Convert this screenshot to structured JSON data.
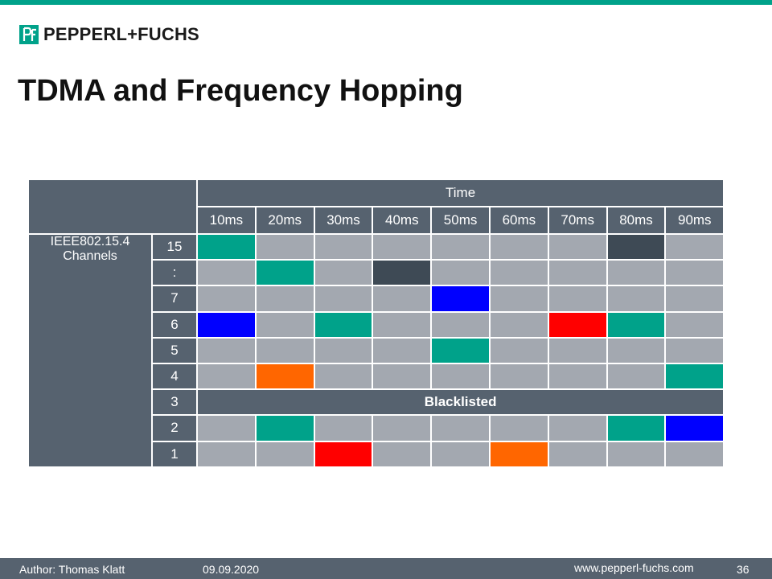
{
  "slide": {
    "brand": "PEPPERL+FUCHS",
    "title": "TDMA and Frequency Hopping"
  },
  "table": {
    "time_header": "Time",
    "channel_label": "IEEE802.15.4 Channels",
    "time_slots": [
      "10ms",
      "20ms",
      "30ms",
      "40ms",
      "50ms",
      "60ms",
      "70ms",
      "80ms",
      "90ms"
    ],
    "blacklisted_label": "Blacklisted",
    "colors": {
      "empty": "#a3a8b0",
      "teal": "#00a28a",
      "dark": "#3e4a55",
      "blue": "#0000ff",
      "red": "#ff0000",
      "orange": "#ff6600"
    },
    "rows": [
      {
        "channel": "15",
        "cells": [
          "teal",
          "empty",
          "empty",
          "empty",
          "empty",
          "empty",
          "empty",
          "dark",
          "empty"
        ]
      },
      {
        "channel": ":",
        "cells": [
          "empty",
          "teal",
          "empty",
          "dark",
          "empty",
          "empty",
          "empty",
          "empty",
          "empty"
        ]
      },
      {
        "channel": "7",
        "cells": [
          "empty",
          "empty",
          "empty",
          "empty",
          "blue",
          "empty",
          "empty",
          "empty",
          "empty"
        ]
      },
      {
        "channel": "6",
        "cells": [
          "blue",
          "empty",
          "teal",
          "empty",
          "empty",
          "empty",
          "red",
          "teal",
          "empty"
        ]
      },
      {
        "channel": "5",
        "cells": [
          "empty",
          "empty",
          "empty",
          "empty",
          "teal",
          "empty",
          "empty",
          "empty",
          "empty"
        ]
      },
      {
        "channel": "4",
        "cells": [
          "empty",
          "orange",
          "empty",
          "empty",
          "empty",
          "empty",
          "empty",
          "empty",
          "teal"
        ]
      },
      {
        "channel": "3",
        "blacklisted": true
      },
      {
        "channel": "2",
        "cells": [
          "empty",
          "teal",
          "empty",
          "empty",
          "empty",
          "empty",
          "empty",
          "teal",
          "blue"
        ]
      },
      {
        "channel": "1",
        "cells": [
          "empty",
          "empty",
          "red",
          "empty",
          "empty",
          "orange",
          "empty",
          "empty",
          "empty"
        ]
      }
    ]
  },
  "footer": {
    "author": "Author:  Thomas Klatt",
    "date": "09.09.2020",
    "website": "www.pepperl-fuchs.com",
    "page": "36"
  }
}
